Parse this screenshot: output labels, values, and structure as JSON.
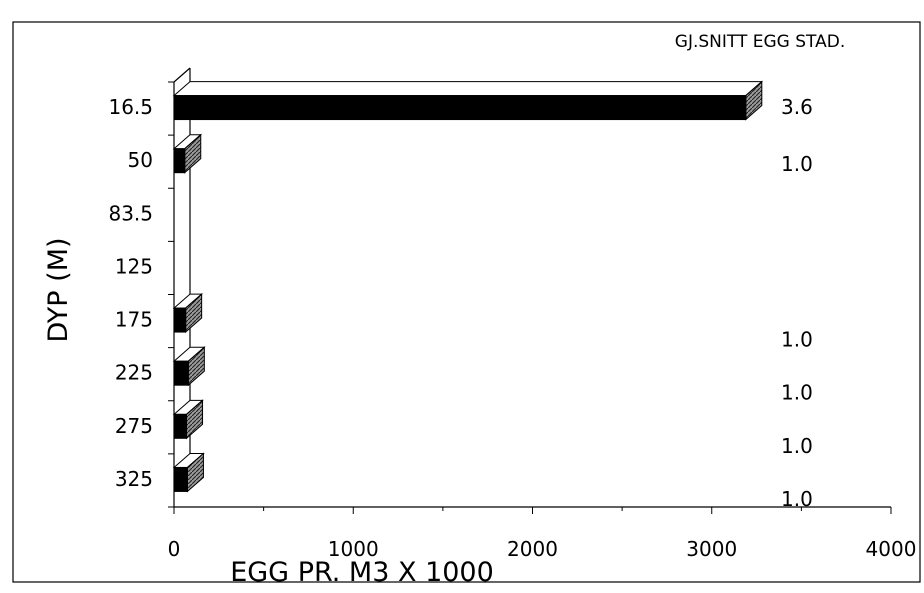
{
  "chart_data": {
    "type": "bar",
    "orientation": "horizontal",
    "three_d": true,
    "xlabel": "EGG PR. M3 X 1000",
    "ylabel": "DYP (M)",
    "xlim": [
      0,
      4000
    ],
    "xticks": [
      "0",
      "1000",
      "2000",
      "3000",
      "4000"
    ],
    "categories": [
      "16.5",
      "50",
      "83.5",
      "125",
      "175",
      "225",
      "275",
      "325"
    ],
    "values": [
      3190,
      60,
      0,
      0,
      65,
      80,
      70,
      75
    ],
    "annotation_title": "GJ.SNITT EGG STAD.",
    "annotations": [
      "3.6",
      "1.0",
      "",
      "",
      "1.0",
      "1.0",
      "1.0",
      "1.0"
    ],
    "grid": false,
    "legend": "none"
  },
  "colors": {
    "bar_front": "#000000",
    "bar_side": "#555555",
    "bar_top": "#ffffff",
    "frame": "#000000"
  }
}
